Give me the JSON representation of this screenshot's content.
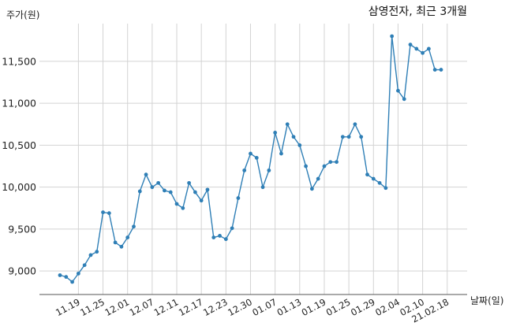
{
  "chart_data": {
    "type": "line",
    "title": "삼영전자, 최근 3개월",
    "ylabel": "주가(원)",
    "xlabel": "날짜(일)",
    "ylim": [
      8720,
      11950
    ],
    "yticks": [
      9000,
      9500,
      10000,
      10500,
      11000,
      11500
    ],
    "ytick_labels": [
      "9,000",
      "9,500",
      "10,000",
      "10,500",
      "11,000",
      "11,500"
    ],
    "xtick_labels": [
      "11.19",
      "11.25",
      "12.01",
      "12.07",
      "12.11",
      "12.17",
      "12.23",
      "12.30",
      "01.07",
      "01.13",
      "01.19",
      "01.25",
      "01.29",
      "02.04",
      "02.10",
      "21.02.18"
    ],
    "xtick_positions": [
      3,
      7,
      11,
      15,
      19,
      23,
      27,
      31,
      35,
      39,
      43,
      47,
      51,
      55,
      59,
      63
    ],
    "grid": true,
    "series": [
      {
        "color": "#2f7fb6",
        "values": [
          8950,
          8930,
          8870,
          8970,
          9070,
          9190,
          9230,
          9700,
          9690,
          9340,
          9290,
          9400,
          9530,
          9950,
          10150,
          10000,
          10050,
          9960,
          9940,
          9800,
          9750,
          10050,
          9940,
          9840,
          9970,
          9400,
          9420,
          9380,
          9510,
          9870,
          10200,
          10400,
          10350,
          10000,
          10200,
          10650,
          10400,
          10750,
          10600,
          10500,
          10250,
          9980,
          10100,
          10250,
          10300,
          10300,
          10600,
          10600,
          10750,
          10600,
          10150,
          10100,
          10050,
          9990,
          11800,
          11150,
          11050,
          11700,
          11650,
          11600,
          11650,
          11400,
          11400
        ]
      }
    ]
  }
}
